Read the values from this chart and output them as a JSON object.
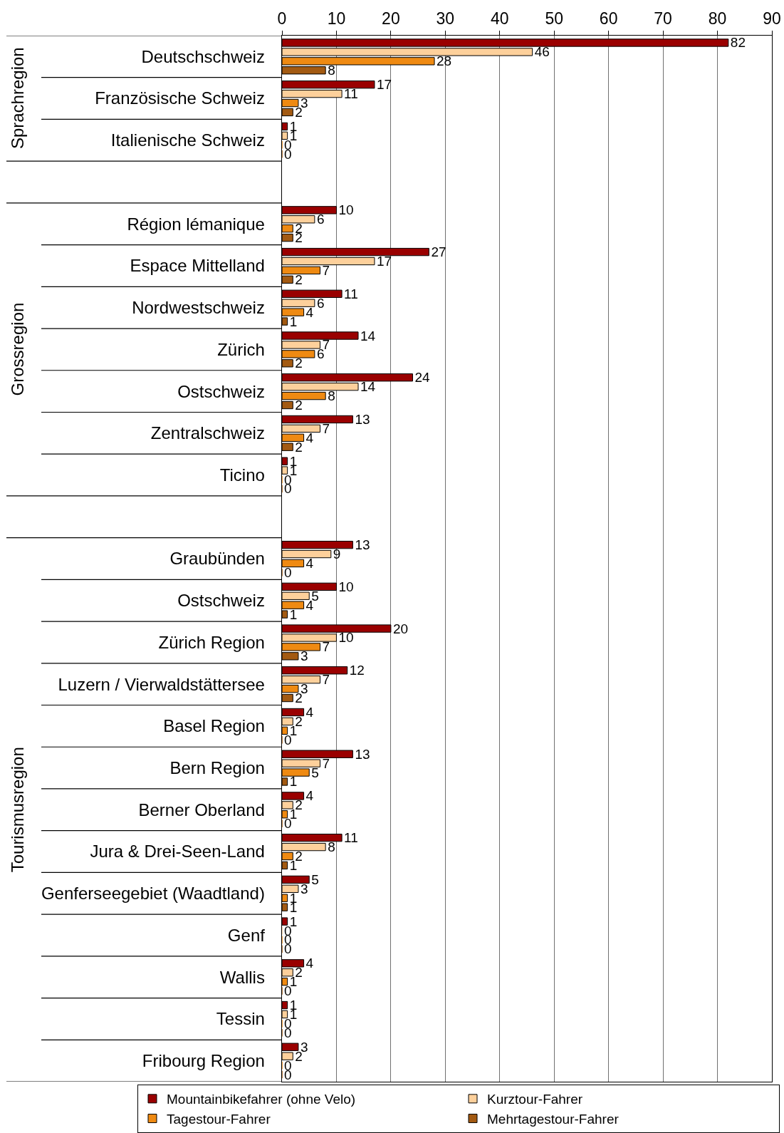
{
  "chart_data": {
    "type": "bar",
    "orientation": "horizontal",
    "categories": [
      "Deutschschweiz",
      "Französische Schweiz",
      "Italienische Schweiz",
      null,
      "Région lémanique",
      "Espace Mittelland",
      "Nordwestschweiz",
      "Zürich",
      "Ostschweiz",
      "Zentralschweiz",
      "Ticino",
      null,
      "Graubünden",
      "Ostschweiz",
      "Zürich Region",
      "Luzern / Vierwaldstättersee",
      "Basel Region",
      "Bern Region",
      "Berner Oberland",
      "Jura & Drei-Seen-Land",
      "Genferseegebiet (Waadtland)",
      "Genf",
      "Wallis",
      "Tessin",
      "Fribourg Region"
    ],
    "series": [
      {
        "name": "Mountainbikefahrer (ohne Velo)",
        "color": "#9a0000",
        "values": [
          82,
          17,
          1,
          null,
          10,
          27,
          11,
          14,
          24,
          13,
          1,
          null,
          13,
          10,
          20,
          12,
          4,
          13,
          4,
          11,
          5,
          1,
          4,
          1,
          3
        ]
      },
      {
        "name": "Kurztour-Fahrer",
        "color": "#fdd09b",
        "values": [
          46,
          11,
          1,
          null,
          6,
          17,
          6,
          7,
          14,
          7,
          1,
          null,
          9,
          5,
          10,
          7,
          2,
          7,
          2,
          8,
          3,
          0,
          2,
          1,
          2
        ]
      },
      {
        "name": "Tagestour-Fahrer",
        "color": "#ef8a12",
        "values": [
          28,
          3,
          0,
          null,
          2,
          7,
          4,
          6,
          8,
          4,
          0,
          null,
          4,
          4,
          7,
          3,
          1,
          5,
          1,
          2,
          1,
          0,
          1,
          0,
          0
        ]
      },
      {
        "name": "Mehrtagestour-Fahrer",
        "color": "#a35a12",
        "values": [
          8,
          2,
          0,
          null,
          2,
          2,
          1,
          2,
          2,
          2,
          0,
          null,
          0,
          1,
          3,
          2,
          0,
          1,
          0,
          1,
          1,
          0,
          0,
          0,
          0
        ]
      }
    ],
    "xlim": [
      0,
      90
    ],
    "xticks": [
      0,
      10,
      20,
      30,
      40,
      50,
      60,
      70,
      80,
      90
    ],
    "grid": "x",
    "legend": "bottom",
    "data_labels": true,
    "annotations": [
      "Sprachregion",
      "Grossregion",
      "Tourismusregion"
    ]
  }
}
